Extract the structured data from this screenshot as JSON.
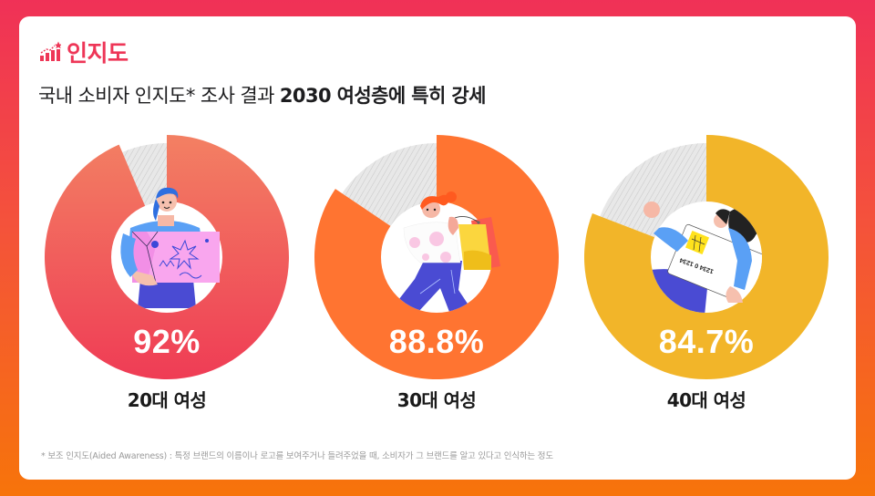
{
  "header": {
    "icon": "chart-growth-star-icon",
    "title": "인지도",
    "accent_color": "#EE3657"
  },
  "headline": {
    "normal": "국내 소비자 인지도* 조사 결과 ",
    "strong": "2030 여성층에 특히 강세"
  },
  "frame": {
    "gradient_top": "#F03157",
    "gradient_bottom": "#F7740A"
  },
  "donuts": [
    {
      "label": "20대 여성",
      "value_text": "92%",
      "value": 92,
      "visual_gap_deg": 23,
      "color_top": "#F38063",
      "color_bottom": "#EF3C55",
      "illustration": "woman-holding-gift-box"
    },
    {
      "label": "30대 여성",
      "value_text": "88.8%",
      "value": 88.8,
      "visual_gap_deg": 56,
      "color_top": "#FF7431",
      "color_bottom": "#FF7431",
      "illustration": "woman-with-shopping-bags"
    },
    {
      "label": "40대 여성",
      "value_text": "84.7%",
      "value": 84.7,
      "visual_gap_deg": 69,
      "color_top": "#F2B529",
      "color_bottom": "#F2B529",
      "illustration": "woman-holding-credit-card"
    }
  ],
  "footnote": "* 보조 인지도(Aided Awareness) : 특정 브랜드의 이름이나 로고를 보여주거나 들려주었을 때, 소비자가 그 브랜드를 알고 있다고 인식하는 정도",
  "chart_data": {
    "type": "pie",
    "title": "인지도",
    "subtitle": "국내 소비자 인지도* 조사 결과 2030 여성층에 특히 강세",
    "categories": [
      "20대 여성",
      "30대 여성",
      "40대 여성"
    ],
    "values": [
      92,
      88.8,
      84.7
    ],
    "unit": "%",
    "style": "donut",
    "remainder_style": "gray-hatched",
    "annotations": [
      "* 보조 인지도(Aided Awareness) : 특정 브랜드의 이름이나 로고를 보여주거나 들려주었을 때, 소비자가 그 브랜드를 알고 있다고 인식하는 정도"
    ],
    "legend": "none"
  }
}
